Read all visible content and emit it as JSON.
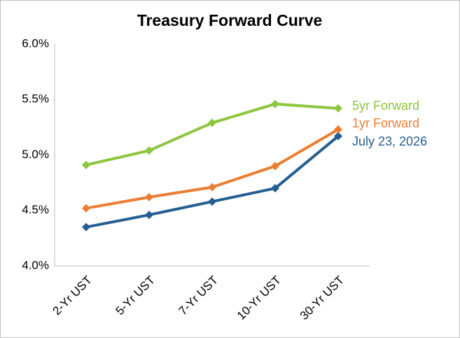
{
  "chart_data": {
    "type": "line",
    "title": "Treasury Forward Curve",
    "categories": [
      "2-Yr UST",
      "5-Yr UST",
      "7-Yr UST",
      "10-Yr UST",
      "30-Yr UST"
    ],
    "series": [
      {
        "name": "July 23, 2026",
        "color": "#255e91",
        "values": [
          4.35,
          4.46,
          4.58,
          4.7,
          5.17
        ]
      },
      {
        "name": "1yr Forward",
        "color": "#ed7d31",
        "values": [
          4.52,
          4.62,
          4.71,
          4.9,
          5.23
        ]
      },
      {
        "name": "5yr Forward",
        "color": "#8dc63f",
        "values": [
          4.91,
          5.04,
          5.29,
          5.46,
          5.42
        ]
      }
    ],
    "ylim": [
      4.0,
      6.0
    ],
    "yticks": [
      {
        "value": 4.0,
        "label": "4.0%"
      },
      {
        "value": 4.5,
        "label": "4.5%"
      },
      {
        "value": 5.0,
        "label": "5.0%"
      },
      {
        "value": 5.5,
        "label": "5.5%"
      },
      {
        "value": 6.0,
        "label": "6.0%"
      }
    ],
    "grid": false
  }
}
